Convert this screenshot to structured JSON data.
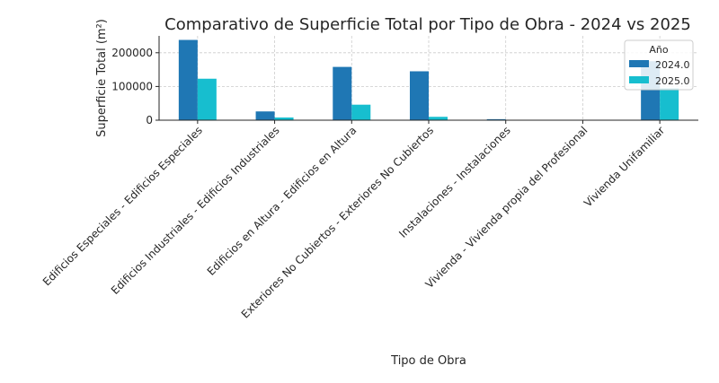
{
  "chart_data": {
    "type": "bar",
    "title": "Comparativo de Superficie Total por Tipo de Obra - 2024 vs 2025",
    "xlabel": "Tipo de Obra",
    "ylabel": "Superficie Total (m²)",
    "categories": [
      "Edificios Especiales - Edificios Especiales",
      "Edificios Industriales - Edificios Industriales",
      "Edificios en Altura - Edificios en Altura",
      "Exteriores No Cubiertos - Exteriores No Cubiertos",
      "Instalaciones - Instalaciones",
      "Vivienda - Vivienda propia del Profesional",
      "Vivienda Unifamiliar"
    ],
    "series": [
      {
        "name": "2024.0",
        "color": "#1f77b4",
        "values": [
          238000,
          26000,
          158000,
          145000,
          3000,
          1000,
          175000
        ]
      },
      {
        "name": "2025.0",
        "color": "#17becf",
        "values": [
          123000,
          8000,
          46000,
          10000,
          1000,
          0,
          95000
        ]
      }
    ],
    "ylim": [
      0,
      250000
    ],
    "yticks": [
      "0",
      "100000",
      "200000"
    ],
    "ytick_values": [
      0,
      100000,
      200000
    ],
    "grid": true,
    "legend": {
      "title": "Año",
      "placement": "top-right"
    }
  }
}
